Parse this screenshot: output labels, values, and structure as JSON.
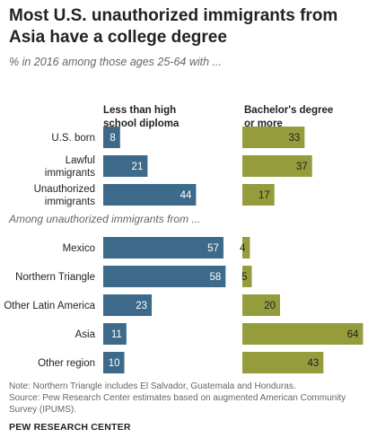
{
  "title": "Most U.S. unauthorized immigrants from Asia have a college degree",
  "subtitle": "% in 2016 among those ages 25-64 with ...",
  "colors": {
    "less": "#3d6a8a",
    "bachelor": "#949c3c",
    "label_text": "#ffffff"
  },
  "chart_data": {
    "type": "bar",
    "orientation": "horizontal",
    "series": [
      {
        "name": "Less than high school diploma",
        "values": [
          8,
          21,
          44,
          57,
          58,
          23,
          11,
          10
        ]
      },
      {
        "name": "Bachelor's degree or more",
        "values": [
          33,
          37,
          17,
          4,
          5,
          20,
          64,
          43
        ]
      }
    ],
    "categories": [
      "U.S. born",
      "Lawful immigrants",
      "Unauthorized immigrants",
      "Mexico",
      "Northern Triangle",
      "Other Latin America",
      "Asia",
      "Other region"
    ],
    "category_lines": [
      [
        "U.S. born"
      ],
      [
        "Lawful",
        "immigrants"
      ],
      [
        "Unauthorized",
        "immigrants"
      ],
      [
        "Mexico"
      ],
      [
        "Northern Triangle"
      ],
      [
        "Other Latin America"
      ],
      [
        "Asia"
      ],
      [
        "Other region"
      ]
    ],
    "group_label": "Among unauthorized immigrants from ...",
    "column_headers": [
      [
        "Less than high",
        "school diploma"
      ],
      [
        "Bachelor's degree",
        "or more"
      ]
    ]
  },
  "notes": [
    "Note: Northern Triangle includes El Salvador, Guatemala and Honduras.",
    "Source: Pew Research Center estimates based on augmented American Community Survey (IPUMS)."
  ],
  "brand": "PEW RESEARCH CENTER"
}
